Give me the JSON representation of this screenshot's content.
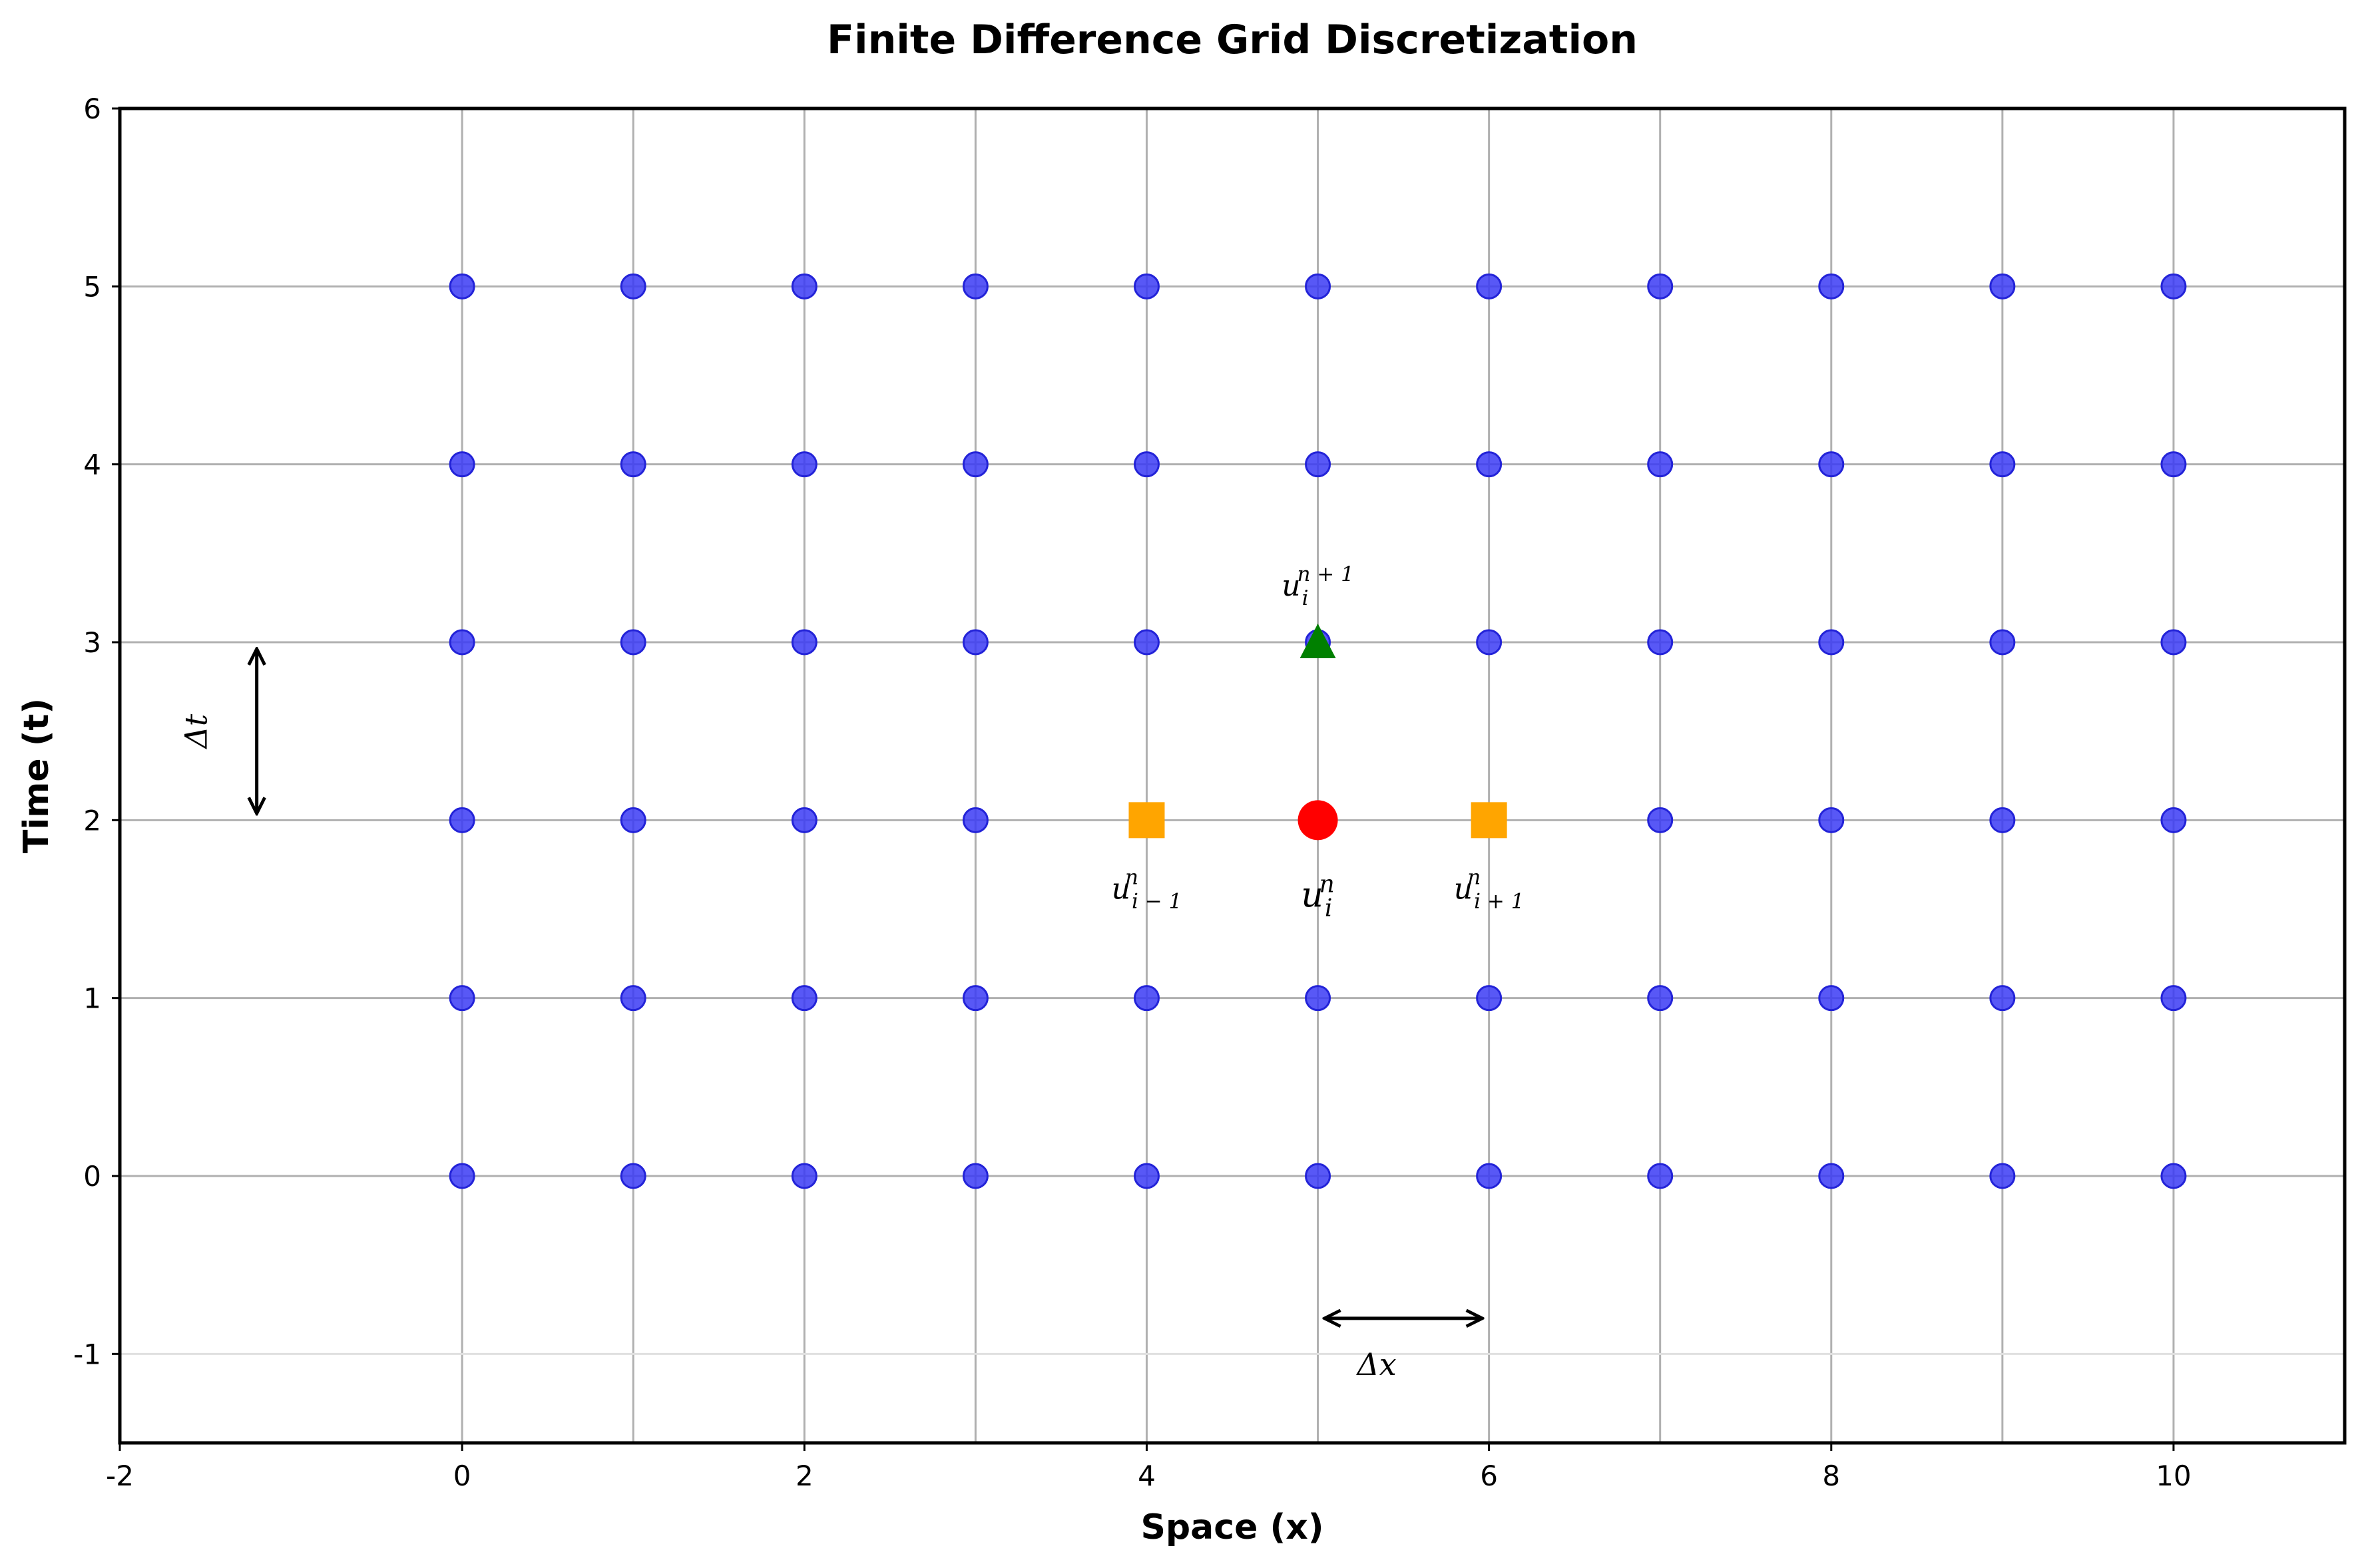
{
  "chart_data": {
    "type": "scatter",
    "title": "Finite Difference Grid Discretization",
    "xlabel": "Space (x)",
    "ylabel": "Time (t)",
    "xlim": [
      -2,
      11
    ],
    "ylim": [
      -1.5,
      6
    ],
    "xticks": [
      -2,
      0,
      2,
      4,
      6,
      8,
      10
    ],
    "yticks": [
      -1,
      0,
      1,
      2,
      3,
      4,
      5,
      6
    ],
    "grid": true,
    "grid_x": [
      0,
      1,
      2,
      3,
      4,
      5,
      6,
      7,
      8,
      9,
      10
    ],
    "grid_y": [
      -1,
      0,
      1,
      2,
      3,
      4,
      5
    ],
    "grid_points": {
      "x": [
        0,
        1,
        2,
        3,
        4,
        5,
        6,
        7,
        8,
        9,
        10
      ],
      "t": [
        0,
        1,
        2,
        3,
        4,
        5
      ],
      "color": "#3b3bf5"
    },
    "highlights": [
      {
        "x": 5,
        "y": 2,
        "marker": "circle",
        "color": "#ff0000",
        "label": "u",
        "sub": "i",
        "sup": "n",
        "label_pos": "below"
      },
      {
        "x": 4,
        "y": 2,
        "marker": "square",
        "color": "#ffa500",
        "label": "u",
        "sub": "i − 1",
        "sup": "n",
        "label_pos": "below"
      },
      {
        "x": 6,
        "y": 2,
        "marker": "square",
        "color": "#ffa500",
        "label": "u",
        "sub": "i + 1",
        "sup": "n",
        "label_pos": "below"
      },
      {
        "x": 5,
        "y": 3,
        "marker": "triangle",
        "color": "#008000",
        "label": "u",
        "sub": "i",
        "sup": "n + 1",
        "label_pos": "above"
      }
    ],
    "annotations": [
      {
        "text": "Δt",
        "arrow_from": [
          -1.2,
          2
        ],
        "arrow_to": [
          -1.2,
          3
        ],
        "orientation": "vertical"
      },
      {
        "text": "Δx",
        "arrow_from": [
          5,
          -0.8
        ],
        "arrow_to": [
          6,
          -0.8
        ],
        "orientation": "horizontal"
      }
    ]
  }
}
